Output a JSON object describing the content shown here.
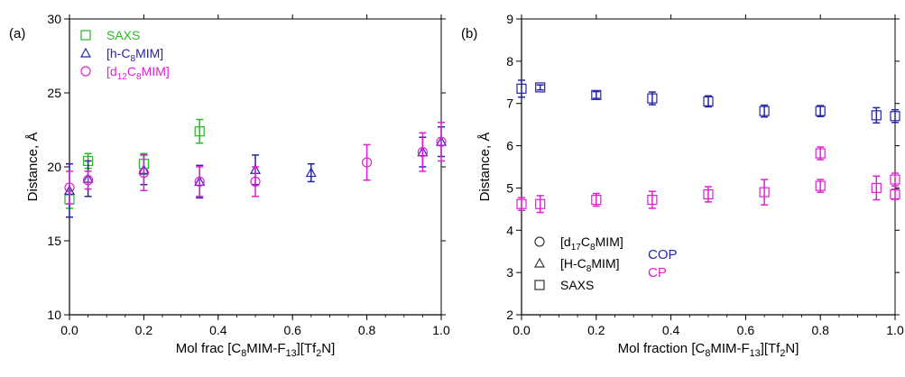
{
  "colors": {
    "saxs": "#22bb22",
    "h": "#2626a8",
    "d": "#e020d0",
    "axis": "#000000"
  },
  "chart_data": [
    {
      "type": "scatter",
      "panel_label": "(a)",
      "xlabel_parts": [
        {
          "t": "Mol frac [C"
        },
        {
          "t": "8",
          "sub": true
        },
        {
          "t": "MIM-F"
        },
        {
          "t": "13",
          "sub": true
        },
        {
          "t": "][Tf"
        },
        {
          "t": "2",
          "sub": true
        },
        {
          "t": "N]"
        }
      ],
      "ylabel": "Distance, Å",
      "xlim": [
        0,
        1
      ],
      "ylim": [
        10,
        30
      ],
      "xticks": [
        0,
        0.2,
        0.4,
        0.6,
        0.8,
        1
      ],
      "xticklabels": [
        "0.0",
        "0.2",
        "0.4",
        "0.6",
        "0.8",
        "1.0"
      ],
      "yticks": [
        10,
        15,
        20,
        25,
        30
      ],
      "yticklabels": [
        "10",
        "15",
        "20",
        "25",
        "30"
      ],
      "grid": false,
      "legend_position": "top-left",
      "series": [
        {
          "key": "saxs",
          "marker": "square",
          "color": "#22bb22",
          "name_parts": [
            {
              "t": "SAXS"
            }
          ],
          "x": [
            0.0,
            0.05,
            0.2,
            0.35
          ],
          "y": [
            17.8,
            20.4,
            20.2,
            22.4
          ],
          "err": [
            0.6,
            0.5,
            0.7,
            0.8
          ]
        },
        {
          "key": "h",
          "marker": "triangle",
          "color": "#2626a8",
          "name_parts": [
            {
              "t": "[h-C"
            },
            {
              "t": "8",
              "sub": true
            },
            {
              "t": "MIM]"
            }
          ],
          "x": [
            0.0,
            0.05,
            0.2,
            0.35,
            0.5,
            0.65,
            0.95,
            1.0
          ],
          "y": [
            18.4,
            19.2,
            19.8,
            19.0,
            19.8,
            19.6,
            21.0,
            21.7
          ],
          "err": [
            1.8,
            1.2,
            1.0,
            1.1,
            1.0,
            0.6,
            1.0,
            1.0
          ]
        },
        {
          "key": "d",
          "marker": "circle",
          "color": "#e020d0",
          "name_parts": [
            {
              "t": "[d"
            },
            {
              "t": "12",
              "sub": true
            },
            {
              "t": "C"
            },
            {
              "t": "8",
              "sub": true
            },
            {
              "t": "MIM]"
            }
          ],
          "x": [
            0.0,
            0.05,
            0.2,
            0.35,
            0.5,
            0.8,
            0.95,
            1.0
          ],
          "y": [
            18.6,
            19.1,
            19.6,
            19.0,
            19.0,
            20.3,
            21.0,
            21.7
          ],
          "err": [
            1.1,
            0.6,
            1.2,
            1.0,
            1.0,
            1.2,
            1.3,
            1.3
          ]
        }
      ]
    },
    {
      "type": "scatter",
      "panel_label": "(b)",
      "xlabel_parts": [
        {
          "t": "Mol fraction [C"
        },
        {
          "t": "8",
          "sub": true
        },
        {
          "t": "MIM-F"
        },
        {
          "t": "13",
          "sub": true
        },
        {
          "t": "][Tf"
        },
        {
          "t": "2",
          "sub": true
        },
        {
          "t": "N]"
        }
      ],
      "ylabel": "Distance, Å",
      "xlim": [
        0,
        1
      ],
      "ylim": [
        2,
        9
      ],
      "xticks": [
        0,
        0.2,
        0.4,
        0.6,
        0.8,
        1
      ],
      "xticklabels": [
        "0.0",
        "0.2",
        "0.4",
        "0.6",
        "0.8",
        "1.0"
      ],
      "yticks": [
        2,
        3,
        4,
        5,
        6,
        7,
        8,
        9
      ],
      "yticklabels": [
        "2",
        "3",
        "4",
        "5",
        "6",
        "7",
        "8",
        "9"
      ],
      "grid": false,
      "legend_position": "bottom-left",
      "legend_markers": [
        {
          "marker": "circle",
          "name_parts": [
            {
              "t": "[d"
            },
            {
              "t": "17",
              "sub": true
            },
            {
              "t": "C"
            },
            {
              "t": "8",
              "sub": true
            },
            {
              "t": "MIM]"
            }
          ]
        },
        {
          "marker": "triangle",
          "name_parts": [
            {
              "t": "[H-C"
            },
            {
              "t": "8",
              "sub": true
            },
            {
              "t": "MIM]"
            }
          ]
        },
        {
          "marker": "square",
          "name_parts": [
            {
              "t": "SAXS"
            }
          ]
        }
      ],
      "legend_colors": [
        {
          "label": "COP",
          "color": "#2626a8"
        },
        {
          "label": "CP",
          "color": "#e020d0"
        }
      ],
      "series": [
        {
          "key": "cop",
          "name": "COP",
          "color": "#2626a8",
          "marker": "square",
          "x": [
            0.0,
            0.05,
            0.2,
            0.35,
            0.5,
            0.65,
            0.8,
            0.95,
            1.0
          ],
          "y": [
            7.35,
            7.38,
            7.2,
            7.12,
            7.05,
            6.82,
            6.82,
            6.72,
            6.7
          ],
          "err": [
            0.2,
            0.06,
            0.08,
            0.15,
            0.13,
            0.14,
            0.13,
            0.18,
            0.15
          ]
        },
        {
          "key": "cp",
          "name": "CP",
          "color": "#e020d0",
          "marker": "square",
          "x": [
            0.0,
            0.05,
            0.2,
            0.35,
            0.5,
            0.65,
            0.8,
            0.8,
            0.95,
            1.0,
            1.0
          ],
          "y": [
            4.62,
            4.62,
            4.72,
            4.72,
            4.85,
            4.9,
            5.82,
            5.05,
            5.0,
            5.2,
            4.85
          ],
          "err": [
            0.15,
            0.2,
            0.15,
            0.2,
            0.18,
            0.3,
            0.15,
            0.15,
            0.28,
            0.15,
            0.12
          ]
        }
      ]
    }
  ]
}
